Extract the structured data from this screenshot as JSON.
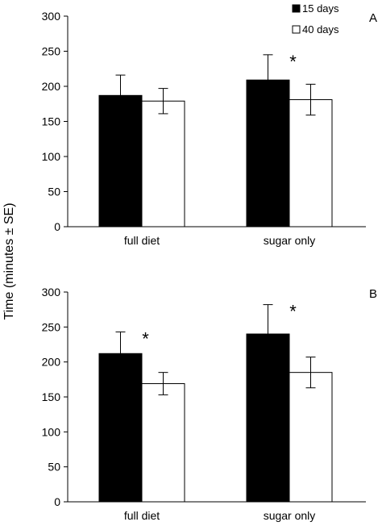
{
  "ylabel": "Time (minutes ± SE)",
  "legend": {
    "entries": [
      {
        "name": "15 days",
        "color": "#000000"
      },
      {
        "name": "40 days",
        "color": "#ffffff"
      }
    ],
    "placement": "top-right"
  },
  "chart_data": [
    {
      "type": "bar",
      "panel_label": "A",
      "categories": [
        "full diet",
        "sugar only"
      ],
      "series": [
        {
          "name": "15 days",
          "color": "#000000",
          "values": [
            187,
            209
          ],
          "errors": [
            29,
            36
          ]
        },
        {
          "name": "40 days",
          "color": "#ffffff",
          "values": [
            179,
            181
          ],
          "errors": [
            18,
            22
          ]
        }
      ],
      "yticks": [
        "0",
        "50",
        "100",
        "150",
        "200",
        "250",
        "300"
      ],
      "ylim": [
        0,
        300
      ],
      "annotations": [
        {
          "category": 1,
          "series": 0,
          "text": "*"
        }
      ],
      "grid": false
    },
    {
      "type": "bar",
      "panel_label": "B",
      "categories": [
        "full diet",
        "sugar only"
      ],
      "series": [
        {
          "name": "15 days",
          "color": "#000000",
          "values": [
            212,
            240
          ],
          "errors": [
            31,
            42
          ]
        },
        {
          "name": "40 days",
          "color": "#ffffff",
          "values": [
            169,
            185
          ],
          "errors": [
            16,
            22
          ]
        }
      ],
      "yticks": [
        "0",
        "50",
        "100",
        "150",
        "200",
        "250",
        "300"
      ],
      "ylim": [
        0,
        300
      ],
      "annotations": [
        {
          "category": 0,
          "series": 0,
          "text": "*"
        },
        {
          "category": 1,
          "series": 0,
          "text": "*"
        }
      ],
      "grid": false
    }
  ]
}
